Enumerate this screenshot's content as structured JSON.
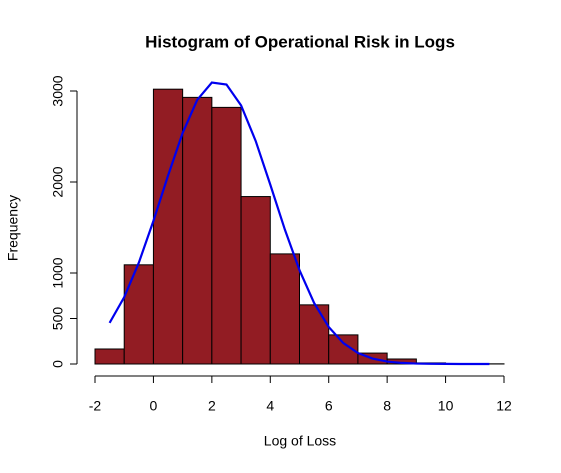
{
  "chart_data": {
    "type": "histogram",
    "title": "Histogram of Operational Risk in Logs",
    "xlabel": "Log of Loss",
    "ylabel": "Frequency",
    "bins": [
      -2,
      -1,
      0,
      1,
      2,
      3,
      4,
      5,
      6,
      7,
      8,
      9,
      10,
      11,
      12
    ],
    "counts": [
      165,
      1090,
      3020,
      2930,
      2820,
      1840,
      1210,
      650,
      320,
      120,
      55,
      12,
      5,
      2
    ],
    "color": "#921c23",
    "curve": {
      "color": "#0000ee",
      "x": [
        -1.5,
        -1,
        -0.5,
        0,
        0.5,
        1,
        1.5,
        2,
        2.5,
        3,
        3.5,
        4,
        4.5,
        5,
        5.5,
        6,
        6.5,
        7,
        7.5,
        8,
        8.5,
        9,
        9.5,
        10,
        10.5,
        11,
        11.5
      ],
      "values": [
        452,
        735,
        1113,
        1573,
        2070,
        2539,
        2903,
        3093,
        3071,
        2842,
        2451,
        1971,
        1476,
        1031,
        671,
        407,
        230,
        121,
        60,
        27,
        12,
        5,
        2,
        1,
        0,
        0,
        0
      ]
    },
    "xlim": [
      -2,
      12
    ],
    "ylim": [
      0,
      3000
    ],
    "xticks": [
      -2,
      0,
      2,
      4,
      6,
      8,
      10,
      12
    ],
    "yticks": [
      0,
      500,
      1000,
      2000,
      3000
    ]
  }
}
